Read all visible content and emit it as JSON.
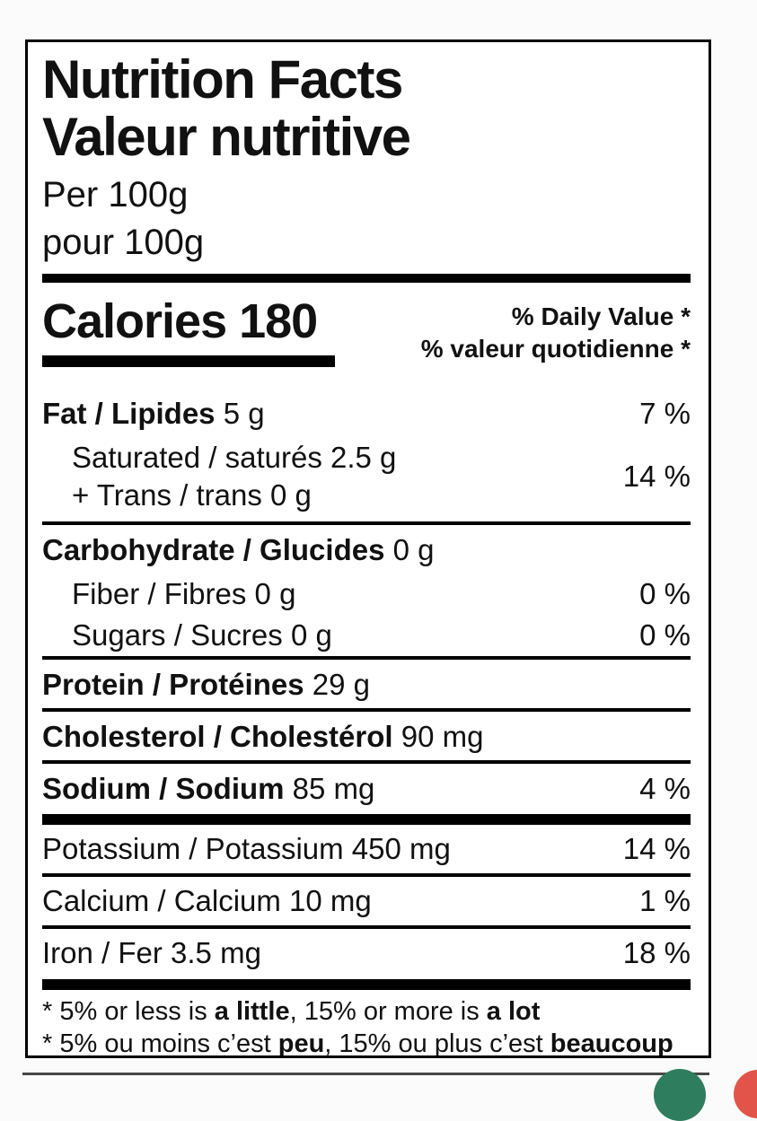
{
  "colors": {
    "text": "#111111",
    "border": "#000000",
    "divider_gray": "#474747",
    "green_button": "#2f7d5f",
    "red_button": "#e25449",
    "page_background": "#fbfbfb"
  },
  "label": {
    "title_en": "Nutrition Facts",
    "title_fr": "Valeur nutritive",
    "serving_en": "Per 100g",
    "serving_fr": "pour 100g",
    "calories": {
      "label": "Calories",
      "value": "180"
    },
    "daily_value_header": {
      "en": "% Daily Value *",
      "fr": "% valeur quotidienne *"
    },
    "rows": [
      {
        "bold": "Fat / Lipides",
        "rest": " 5 g",
        "dv": "7 %"
      },
      {
        "line1": "Saturated / saturés 2.5 g",
        "line2": "+ Trans / trans 0 g",
        "dv": "14 %"
      },
      {
        "bold": "Carbohydrate / Glucides",
        "rest": " 0 g",
        "dv": ""
      },
      {
        "rest": "Fiber / Fibres 0 g",
        "dv": "0 %"
      },
      {
        "rest": "Sugars / Sucres 0 g",
        "dv": "0 %"
      },
      {
        "bold": "Protein / Protéines",
        "rest": " 29 g",
        "dv": ""
      },
      {
        "bold": "Cholesterol / Cholestérol",
        "rest": " 90 mg",
        "dv": ""
      },
      {
        "bold": "Sodium / Sodium",
        "rest": " 85 mg",
        "dv": "4 %"
      },
      {
        "rest": "Potassium / Potassium 450 mg",
        "dv": "14 %"
      },
      {
        "rest": "Calcium / Calcium 10 mg",
        "dv": "1 %"
      },
      {
        "rest": "Iron / Fer 3.5 mg",
        "dv": "18 %"
      }
    ],
    "footnotes": {
      "en": {
        "p1": "* 5% or less is ",
        "b1": "a little",
        "p2": ", 15% or more is ",
        "b2": "a lot"
      },
      "fr": {
        "p1": "* 5% ou moins c’est ",
        "b1": "peu",
        "p2": ", 15% ou plus c’est ",
        "b2": "beaucoup"
      }
    }
  }
}
